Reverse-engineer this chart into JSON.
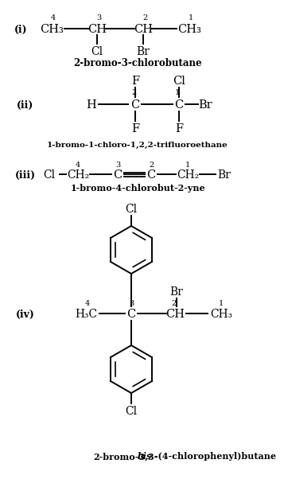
{
  "bg_color": "#ffffff",
  "fig_width": 3.26,
  "fig_height": 5.83,
  "i_label": "(i)",
  "i_name": "2-bromo-3-chlorobutane",
  "ii_label": "(ii)",
  "ii_name": "1-bromo-1-chloro-1,2,2-trifluoroethane",
  "iii_label": "(iii)",
  "iii_name": "1-bromo-4-chlorobut-2-yne",
  "iv_label": "(iv)",
  "iv_name_pre": "2-bromo-3,3-",
  "iv_name_bis": "bis",
  "iv_name_post": " -(4-chlorophenyl)butane"
}
